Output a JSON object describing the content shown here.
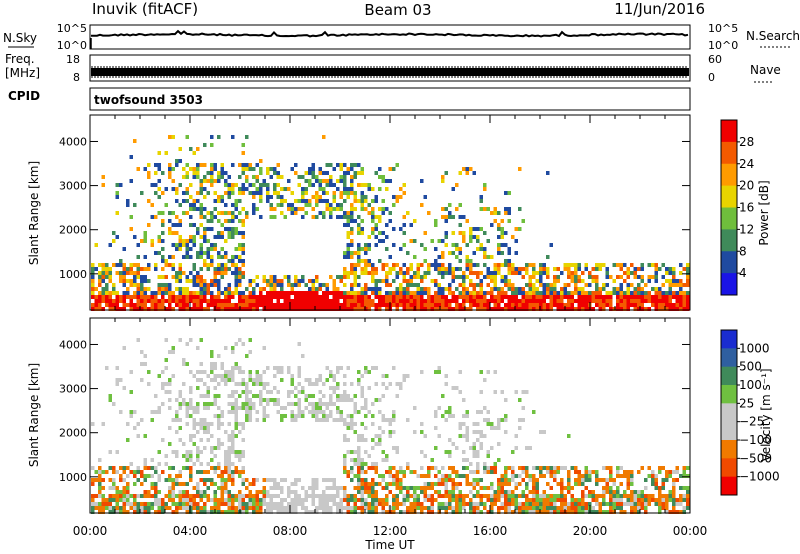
{
  "header": {
    "station": "Inuvik (fitACF)",
    "beam": "Beam 03",
    "date": "11/Jun/2016"
  },
  "chart_data": [
    {
      "type": "line",
      "name": "noise-panel",
      "left_label": "N.Sky",
      "right_label": "N.Search",
      "y_ticks_left": [
        "10^5",
        "10^0"
      ],
      "y_ticks_right": [
        "10^5",
        "10^0"
      ]
    },
    {
      "type": "line",
      "name": "frequency-panel",
      "left_label_line1": "Freq.",
      "left_label_line2": "[MHz]",
      "right_label": "Nave",
      "y_ticks_left": [
        "18",
        "8"
      ],
      "y_ticks_right": [
        "60",
        "0"
      ]
    },
    {
      "type": "table",
      "name": "cpid-panel",
      "left_label": "CPID",
      "program": "twofsound 3503"
    },
    {
      "type": "heatmap",
      "name": "power-panel",
      "ylabel": "Slant Range [km]",
      "y_ticks": [
        "4000",
        "3000",
        "2000",
        "1000"
      ],
      "ylim": [
        180,
        4600
      ],
      "colorbar_label": "Power [dB]",
      "colorbar_ticks": [
        "28",
        "24",
        "20",
        "16",
        "12",
        "8",
        "4"
      ],
      "colorbar_colors": [
        "#f00000",
        "#f45a00",
        "#ff9b00",
        "#e8d400",
        "#6fbe3c",
        "#3f8a5a",
        "#1f4aa0",
        "#1a14e6"
      ]
    },
    {
      "type": "heatmap",
      "name": "velocity-panel",
      "ylabel": "Slant Range [km]",
      "y_ticks": [
        "4000",
        "3000",
        "2000",
        "1000"
      ],
      "ylim": [
        180,
        4600
      ],
      "colorbar_label": "Velocity [m s⁻¹]",
      "colorbar_ticks": [
        "1000",
        "500",
        "100",
        "25",
        "−25",
        "−100",
        "−500",
        "−1000"
      ],
      "colorbar_colors": [
        "#1a2cd0",
        "#2f5fa0",
        "#3f8a5a",
        "#6fc040",
        "#c8c8c8",
        "#c8c8c8",
        "#f07a00",
        "#f04a00",
        "#f00000"
      ]
    }
  ],
  "x_axis": {
    "label": "Time UT",
    "ticks": [
      "00:00",
      "04:00",
      "08:00",
      "12:00",
      "16:00",
      "20:00",
      "00:00"
    ]
  }
}
